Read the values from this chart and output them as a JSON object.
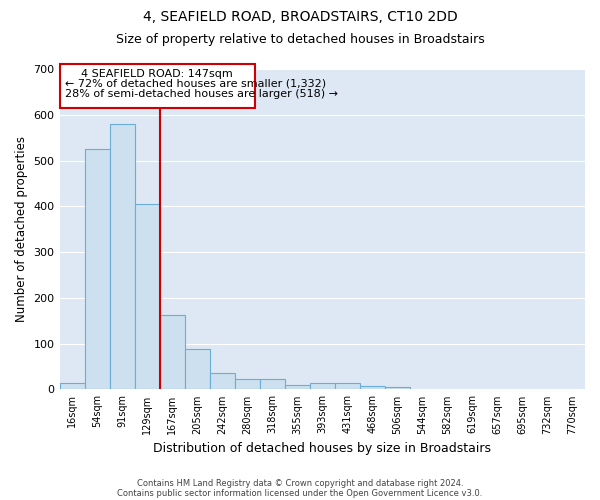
{
  "title": "4, SEAFIELD ROAD, BROADSTAIRS, CT10 2DD",
  "subtitle": "Size of property relative to detached houses in Broadstairs",
  "xlabel": "Distribution of detached houses by size in Broadstairs",
  "ylabel": "Number of detached properties",
  "footnote1": "Contains HM Land Registry data © Crown copyright and database right 2024.",
  "footnote2": "Contains public sector information licensed under the Open Government Licence v3.0.",
  "bin_labels": [
    "16sqm",
    "54sqm",
    "91sqm",
    "129sqm",
    "167sqm",
    "205sqm",
    "242sqm",
    "280sqm",
    "318sqm",
    "355sqm",
    "393sqm",
    "431sqm",
    "468sqm",
    "506sqm",
    "544sqm",
    "582sqm",
    "619sqm",
    "657sqm",
    "695sqm",
    "732sqm",
    "770sqm"
  ],
  "bar_heights": [
    15,
    525,
    580,
    405,
    162,
    88,
    35,
    22,
    23,
    10,
    14,
    14,
    7,
    5,
    0,
    0,
    0,
    0,
    0,
    0,
    0
  ],
  "bar_color": "#cce0f0",
  "bar_edge_color": "#6aaed6",
  "vline_color": "#cc0000",
  "annotation_text_line1": "4 SEAFIELD ROAD: 147sqm",
  "annotation_text_line2": "← 72% of detached houses are smaller (1,332)",
  "annotation_text_line3": "28% of semi-detached houses are larger (518) →",
  "annotation_box_color": "#ffffff",
  "annotation_box_edge": "#cc0000",
  "ylim": [
    0,
    700
  ],
  "yticks": [
    0,
    100,
    200,
    300,
    400,
    500,
    600,
    700
  ],
  "plot_background": "#dde8f4",
  "grid_color": "#ffffff",
  "title_fontsize": 10,
  "subtitle_fontsize": 9,
  "annotation_fontsize": 8,
  "ylabel_fontsize": 8.5,
  "xlabel_fontsize": 9
}
